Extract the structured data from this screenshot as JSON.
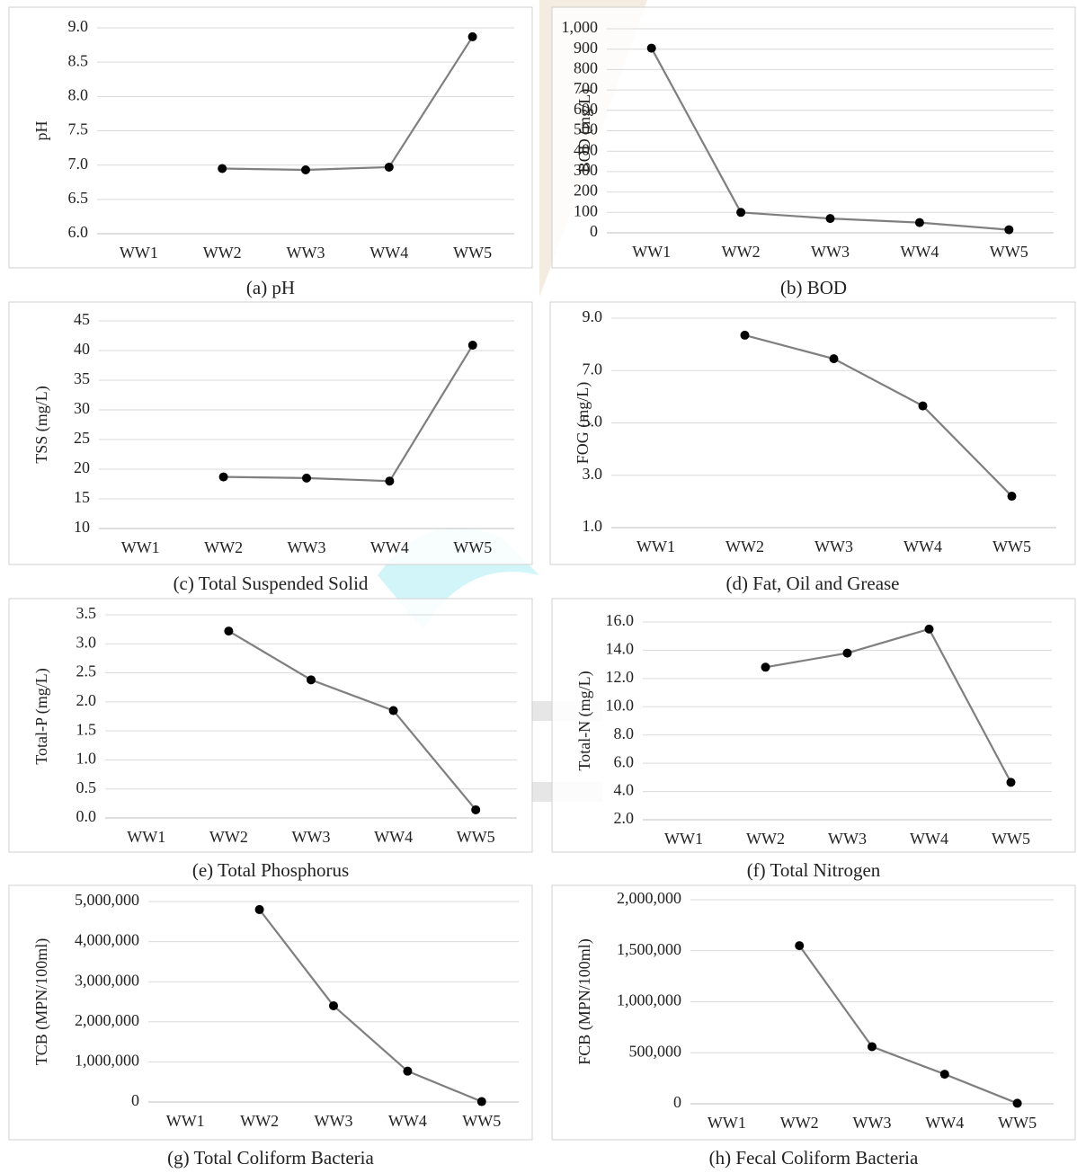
{
  "chart_data": [
    {
      "type": "line",
      "caption": "(a) pH",
      "ylabel": "pH",
      "categories": [
        "WW1",
        "WW2",
        "WW3",
        "WW4",
        "WW5"
      ],
      "values": [
        null,
        6.95,
        6.93,
        6.97,
        8.87
      ],
      "ylim": [
        6,
        9
      ],
      "yticks": [
        {
          "value": 6,
          "label": "6.0"
        },
        6.5,
        {
          "value": 7,
          "label": "7.0"
        },
        7.5,
        {
          "value": 8,
          "label": "8.0"
        },
        8.5,
        {
          "value": 9,
          "label": "9.0"
        }
      ],
      "grid": true,
      "color": "#7f7f7f",
      "marker_color": "#000000"
    },
    {
      "type": "line",
      "caption": "(b) BOD",
      "ylabel": "BOD (mg/L)",
      "categories": [
        "WW1",
        "WW2",
        "WW3",
        "WW4",
        "WW5"
      ],
      "values": [
        905,
        100,
        70,
        50,
        15
      ],
      "ylim": [
        0,
        1000
      ],
      "yticks": [
        0,
        100,
        200,
        300,
        400,
        500,
        600,
        700,
        800,
        900,
        {
          "value": 1000,
          "label": "1,000"
        }
      ],
      "grid": true,
      "color": "#7f7f7f",
      "marker_color": "#000000"
    },
    {
      "type": "line",
      "caption": "(c)  Total Suspended Solid",
      "ylabel": "TSS (mg/L)",
      "categories": [
        "WW1",
        "WW2",
        "WW3",
        "WW4",
        "WW5"
      ],
      "values": [
        null,
        18.7,
        18.5,
        18.0,
        40.9
      ],
      "ylim": [
        10,
        45
      ],
      "yticks": [
        10,
        15,
        20,
        25,
        30,
        35,
        40,
        45
      ],
      "grid": true,
      "color": "#7f7f7f",
      "marker_color": "#000000"
    },
    {
      "type": "line",
      "caption": "(d) Fat, Oil and Grease",
      "ylabel": "FOG (mg/L)",
      "categories": [
        "WW1",
        "WW2",
        "WW3",
        "WW4",
        "WW5"
      ],
      "values": [
        null,
        8.35,
        7.45,
        5.65,
        2.2
      ],
      "ylim": [
        1,
        9
      ],
      "yticks": [
        {
          "value": 1,
          "label": "1.0"
        },
        {
          "value": 3,
          "label": "3.0"
        },
        {
          "value": 5,
          "label": "5.0"
        },
        {
          "value": 7,
          "label": "7.0"
        },
        {
          "value": 9,
          "label": "9.0"
        }
      ],
      "grid": true,
      "color": "#7f7f7f",
      "marker_color": "#000000"
    },
    {
      "type": "line",
      "caption": "(e) Total Phosphorus",
      "ylabel": "Total-P (mg/L)",
      "categories": [
        "WW1",
        "WW2",
        "WW3",
        "WW4",
        "WW5"
      ],
      "values": [
        null,
        3.22,
        2.38,
        1.85,
        0.14
      ],
      "ylim": [
        0,
        3.5
      ],
      "yticks": [
        {
          "value": 0,
          "label": "0.0"
        },
        0.5,
        {
          "value": 1,
          "label": "1.0"
        },
        1.5,
        {
          "value": 2,
          "label": "2.0"
        },
        2.5,
        {
          "value": 3,
          "label": "3.0"
        },
        3.5
      ],
      "grid": true,
      "color": "#7f7f7f",
      "marker_color": "#000000"
    },
    {
      "type": "line",
      "caption": "(f) Total Nitrogen",
      "ylabel": "Total-N (mg/L)",
      "categories": [
        "WW1",
        "WW2",
        "WW3",
        "WW4",
        "WW5"
      ],
      "values": [
        null,
        12.8,
        13.8,
        15.5,
        4.65
      ],
      "ylim": [
        2,
        16
      ],
      "yticks": [
        {
          "value": 2,
          "label": "2.0"
        },
        {
          "value": 4,
          "label": "4.0"
        },
        {
          "value": 6,
          "label": "6.0"
        },
        {
          "value": 8,
          "label": "8.0"
        },
        {
          "value": 10,
          "label": "10.0"
        },
        {
          "value": 12,
          "label": "12.0"
        },
        {
          "value": 14,
          "label": "14.0"
        },
        {
          "value": 16,
          "label": "16.0"
        }
      ],
      "grid": true,
      "color": "#7f7f7f",
      "marker_color": "#000000"
    },
    {
      "type": "line",
      "caption": "(g) Total Coliform Bacteria",
      "ylabel": "TCB (MPN/100ml)",
      "categories": [
        "WW1",
        "WW2",
        "WW3",
        "WW4",
        "WW5"
      ],
      "values": [
        null,
        4800000,
        2400000,
        770000,
        10000
      ],
      "ylim": [
        0,
        5000000
      ],
      "yticks": [
        0,
        {
          "value": 1000000,
          "label": "1,000,000"
        },
        {
          "value": 2000000,
          "label": "2,000,000"
        },
        {
          "value": 3000000,
          "label": "3,000,000"
        },
        {
          "value": 4000000,
          "label": "4,000,000"
        },
        {
          "value": 5000000,
          "label": "5,000,000"
        }
      ],
      "grid": true,
      "color": "#7f7f7f",
      "marker_color": "#000000"
    },
    {
      "type": "line",
      "caption": "(h) Fecal Coliform Bacteria",
      "ylabel": "FCB (MPN/100ml)",
      "categories": [
        "WW1",
        "WW2",
        "WW3",
        "WW4",
        "WW5"
      ],
      "values": [
        null,
        1550000,
        560000,
        290000,
        5000
      ],
      "ylim": [
        0,
        2000000
      ],
      "yticks": [
        0,
        {
          "value": 500000,
          "label": "500,000"
        },
        {
          "value": 1000000,
          "label": "1,000,000"
        },
        {
          "value": 1500000,
          "label": "1,500,000"
        },
        {
          "value": 2000000,
          "label": "2,000,000"
        }
      ],
      "grid": true,
      "color": "#7f7f7f",
      "marker_color": "#000000"
    }
  ]
}
